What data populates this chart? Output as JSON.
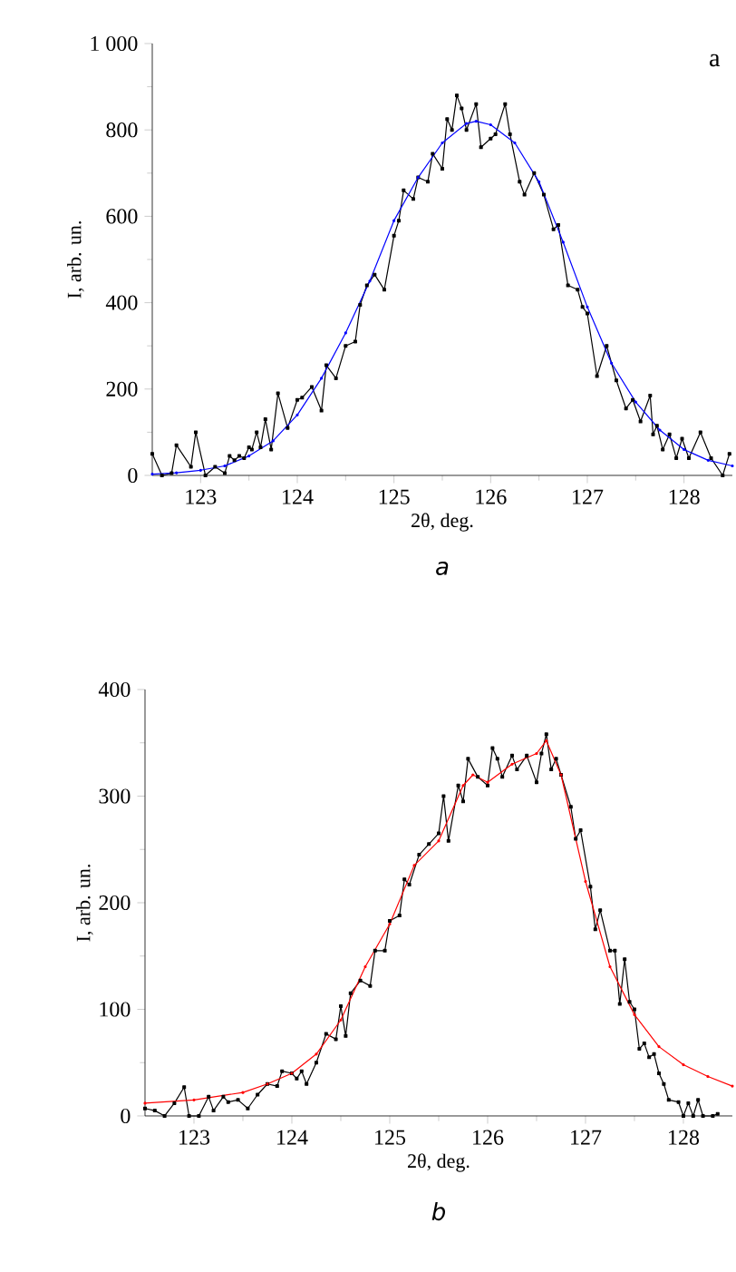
{
  "chart_data": [
    {
      "type": "line",
      "title": "a",
      "xlabel": "2θ, deg.",
      "ylabel": "I, arb. un.",
      "annotations": [
        "a"
      ],
      "xlim": [
        122.5,
        128.5
      ],
      "xticks": [
        123,
        124,
        125,
        126,
        127,
        128
      ],
      "ylim": [
        0,
        1000
      ],
      "yticks": [
        0,
        200,
        400,
        600,
        800,
        {
          "value": 1000,
          "label": "1 000"
        }
      ],
      "series": [
        {
          "color": "#000000",
          "marker": "square",
          "x": [
            122.5,
            122.6,
            122.7,
            122.75,
            122.9,
            122.95,
            123.05,
            123.15,
            123.25,
            123.3,
            123.35,
            123.4,
            123.45,
            123.5,
            123.53,
            123.58,
            123.62,
            123.67,
            123.73,
            123.8,
            123.9,
            124.0,
            124.05,
            124.15,
            124.25,
            124.3,
            124.4,
            124.5,
            124.6,
            124.65,
            124.72,
            124.8,
            124.9,
            125.0,
            125.05,
            125.1,
            125.2,
            125.25,
            125.35,
            125.4,
            125.5,
            125.55,
            125.6,
            125.65,
            125.7,
            125.75,
            125.85,
            125.9,
            126.0,
            126.05,
            126.15,
            126.2,
            126.3,
            126.35,
            126.45,
            126.55,
            126.65,
            126.7,
            126.8,
            126.9,
            126.95,
            127.0,
            127.1,
            127.2,
            127.3,
            127.4,
            127.47,
            127.55,
            127.65,
            127.68,
            127.72,
            127.78,
            127.85,
            127.92,
            127.98,
            128.05,
            128.17,
            128.28,
            128.4,
            128.47
          ],
          "values": [
            50,
            0,
            5,
            70,
            20,
            100,
            0,
            20,
            5,
            45,
            35,
            45,
            40,
            65,
            60,
            100,
            65,
            130,
            60,
            190,
            110,
            175,
            180,
            205,
            150,
            255,
            225,
            300,
            310,
            395,
            440,
            465,
            430,
            555,
            590,
            660,
            640,
            690,
            680,
            745,
            710,
            825,
            800,
            880,
            850,
            800,
            860,
            760,
            780,
            790,
            860,
            790,
            680,
            650,
            700,
            650,
            570,
            580,
            440,
            430,
            390,
            375,
            230,
            300,
            220,
            155,
            175,
            125,
            185,
            95,
            115,
            60,
            95,
            40,
            85,
            40,
            100,
            40,
            0,
            50
          ]
        },
        {
          "color": "#0000ff",
          "marker": "circle",
          "x": [
            122.5,
            122.75,
            123.0,
            123.25,
            123.5,
            123.75,
            124.0,
            124.25,
            124.5,
            124.75,
            125.0,
            125.25,
            125.5,
            125.75,
            125.85,
            126.0,
            126.25,
            126.5,
            126.75,
            127.0,
            127.25,
            127.5,
            127.75,
            128.0,
            128.25,
            128.5
          ],
          "values": [
            3,
            6,
            12,
            22,
            45,
            80,
            140,
            225,
            330,
            450,
            590,
            690,
            770,
            815,
            820,
            812,
            770,
            680,
            540,
            390,
            260,
            170,
            105,
            60,
            35,
            22
          ]
        }
      ]
    },
    {
      "type": "line",
      "title": "b",
      "xlabel": "2θ, deg.",
      "ylabel": "I, arb. un.",
      "xlim": [
        122.5,
        128.5
      ],
      "xticks": [
        123,
        124,
        125,
        126,
        127,
        128
      ],
      "ylim": [
        0,
        400
      ],
      "yticks": [
        0,
        100,
        200,
        300,
        400
      ],
      "series": [
        {
          "color": "#000000",
          "marker": "square",
          "x": [
            122.5,
            122.6,
            122.7,
            122.8,
            122.9,
            122.95,
            123.05,
            123.15,
            123.2,
            123.3,
            123.35,
            123.45,
            123.55,
            123.65,
            123.75,
            123.85,
            123.9,
            124.0,
            124.05,
            124.1,
            124.15,
            124.25,
            124.35,
            124.45,
            124.5,
            124.55,
            124.6,
            124.7,
            124.8,
            124.85,
            124.95,
            125.0,
            125.1,
            125.15,
            125.2,
            125.3,
            125.4,
            125.5,
            125.55,
            125.6,
            125.7,
            125.75,
            125.8,
            125.9,
            126.0,
            126.05,
            126.1,
            126.15,
            126.25,
            126.3,
            126.4,
            126.5,
            126.55,
            126.6,
            126.65,
            126.7,
            126.75,
            126.85,
            126.9,
            126.95,
            127.05,
            127.1,
            127.15,
            127.25,
            127.3,
            127.35,
            127.4,
            127.45,
            127.5,
            127.55,
            127.6,
            127.65,
            127.7,
            127.75,
            127.8,
            127.85,
            127.95,
            128.0,
            128.05,
            128.1,
            128.15,
            128.2,
            128.3,
            128.35
          ],
          "values": [
            7,
            5,
            0,
            12,
            27,
            0,
            0,
            18,
            5,
            18,
            13,
            15,
            7,
            20,
            30,
            28,
            42,
            40,
            35,
            42,
            30,
            50,
            77,
            72,
            103,
            75,
            115,
            127,
            122,
            155,
            155,
            183,
            188,
            222,
            217,
            245,
            255,
            265,
            300,
            258,
            310,
            295,
            335,
            318,
            310,
            345,
            335,
            318,
            338,
            325,
            338,
            313,
            340,
            358,
            325,
            335,
            320,
            290,
            260,
            268,
            215,
            175,
            193,
            155,
            155,
            105,
            147,
            107,
            100,
            63,
            68,
            55,
            58,
            40,
            30,
            15,
            13,
            0,
            12,
            0,
            15,
            0,
            0,
            2
          ]
        },
        {
          "color": "#ff0000",
          "marker": "circle",
          "x": [
            122.5,
            123.0,
            123.5,
            123.75,
            124.0,
            124.25,
            124.5,
            124.75,
            125.0,
            125.25,
            125.5,
            125.75,
            125.85,
            126.0,
            126.25,
            126.5,
            126.6,
            126.75,
            127.0,
            127.25,
            127.5,
            127.75,
            128.0,
            128.25,
            128.5
          ],
          "values": [
            12,
            15,
            22,
            30,
            40,
            58,
            90,
            140,
            180,
            235,
            258,
            310,
            320,
            313,
            330,
            340,
            352,
            320,
            220,
            140,
            95,
            65,
            48,
            37,
            28
          ]
        }
      ]
    }
  ]
}
